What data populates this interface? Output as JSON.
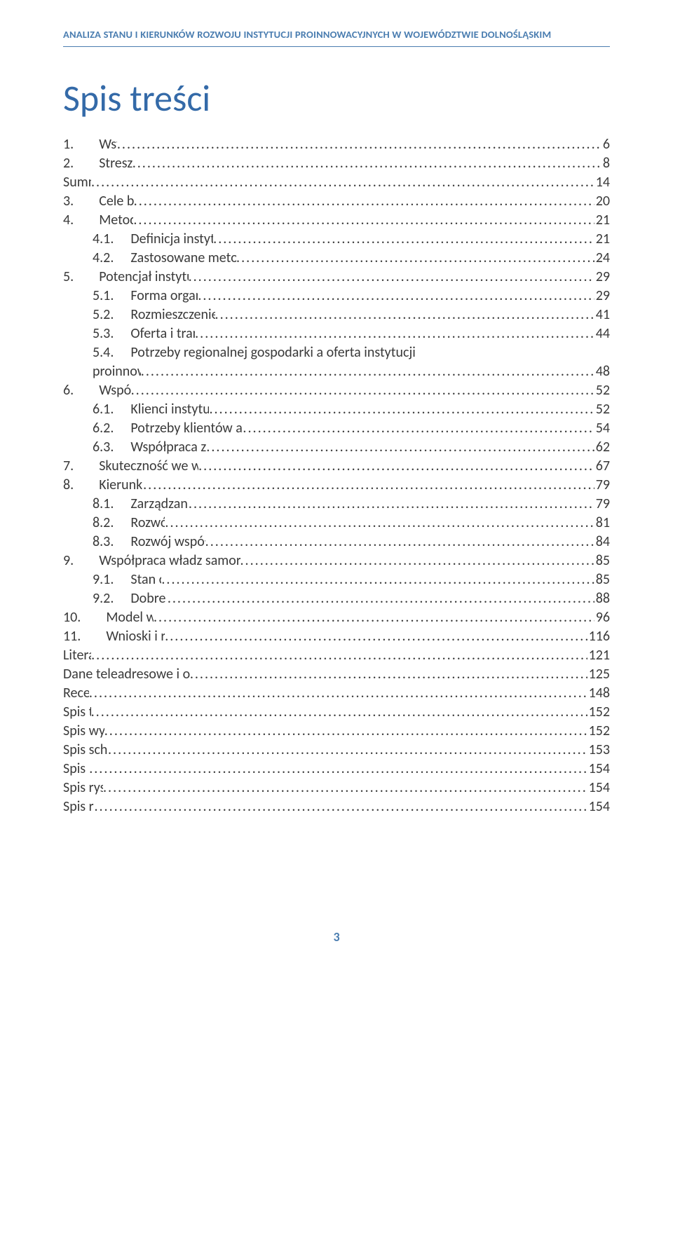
{
  "header": "ANALIZA STANU I KIERUNKÓW ROZWOJU INSTYTUCJI PROINNOWACYJNYCH W WOJEWÓDZTWIE DOLNOŚLĄSKIM",
  "title": "Spis treści",
  "pageNumber": "3",
  "toc": [
    {
      "level": 0,
      "num": "1.",
      "label": "Wstęp",
      "page": "6"
    },
    {
      "level": 0,
      "num": "2.",
      "label": "Streszczenie",
      "page": "8"
    },
    {
      "level": 0,
      "num": "",
      "label": "Summary",
      "page": "14"
    },
    {
      "level": 0,
      "num": "3.",
      "label": "Cele badania",
      "page": "20"
    },
    {
      "level": 0,
      "num": "4.",
      "label": "Metodologia",
      "page": "21"
    },
    {
      "level": 1,
      "num": "4.1.",
      "label": "Definicja instytucji proinnowacyjnych",
      "page": "21"
    },
    {
      "level": 1,
      "num": "4.2.",
      "label": "Zastosowane metody badawcze i przebieg badania",
      "page": "24"
    },
    {
      "level": 0,
      "num": "5.",
      "label": "Potencjał instytucji proinnowacyjnych",
      "page": "29"
    },
    {
      "level": 1,
      "num": "5.1.",
      "label": "Forma organizacyjna i zasoby",
      "page": "29"
    },
    {
      "level": 1,
      "num": "5.2.",
      "label": "Rozmieszczenie i zasięg oddziaływania",
      "page": "41"
    },
    {
      "level": 1,
      "num": "5.3.",
      "label": "Oferta i transfer technologii",
      "page": "44"
    },
    {
      "level": 1,
      "num": "5.4.",
      "label": "Potrzeby regionalnej gospodarki a oferta instytucji",
      "page": null,
      "cont": "proinnowacyjnych",
      "contPage": "48"
    },
    {
      "level": 0,
      "num": "6.",
      "label": "Współpraca",
      "page": "52"
    },
    {
      "level": 1,
      "num": "6.1.",
      "label": "Klienci instytucji proinnowacyjnych",
      "page": "52"
    },
    {
      "level": 1,
      "num": "6.2.",
      "label": "Potrzeby klientów a oferta instytucji  proinnowacyjnych",
      "page": "54"
    },
    {
      "level": 1,
      "num": "6.3.",
      "label": "Współpraca z innymi instytucjami",
      "page": "62"
    },
    {
      "level": 0,
      "num": "7.",
      "label": "Skuteczność we wspieraniu innowacyjności",
      "page": "67"
    },
    {
      "level": 0,
      "num": "8.",
      "label": "Kierunki rozwoju",
      "page": "79"
    },
    {
      "level": 1,
      "num": "8.1.",
      "label": "Zarządzanie strategiczne",
      "page": "79"
    },
    {
      "level": 1,
      "num": "8.2.",
      "label": "Rozwój oferty",
      "page": "81"
    },
    {
      "level": 1,
      "num": "8.3.",
      "label": "Rozwój współpracy z otoczeniem",
      "page": "84"
    },
    {
      "level": 0,
      "num": "9.",
      "label": "Współpraca władz samorządowych  z instytucjami proinnowacyjnymi",
      "page": "85"
    },
    {
      "level": 1,
      "num": "9.1.",
      "label": "Stan obecny",
      "page": "85"
    },
    {
      "level": 1,
      "num": "9.2.",
      "label": "Dobre praktyki",
      "page": "88"
    },
    {
      "level": 0,
      "num": "10.",
      "label": "Model współpracy",
      "page": "96"
    },
    {
      "level": 0,
      "num": "11.",
      "label": "Wnioski i rekomendacje",
      "page": "116"
    },
    {
      "level": 0,
      "num": "",
      "label": "Literatura",
      "page": "121"
    },
    {
      "level": 0,
      "num": "",
      "label": "Dane teleadresowe i opisy instytucji proinnowacyjnych",
      "page": "125"
    },
    {
      "level": 0,
      "num": "",
      "label": "Recenzje",
      "page": "148"
    },
    {
      "level": 0,
      "num": "",
      "label": "Spis tabel",
      "page": "152"
    },
    {
      "level": 0,
      "num": "",
      "label": "Spis wykresów",
      "page": "152"
    },
    {
      "level": 0,
      "num": "",
      "label": "Spis schematów",
      "page": "153"
    },
    {
      "level": 0,
      "num": "",
      "label": "Spis map",
      "page": "154"
    },
    {
      "level": 0,
      "num": "",
      "label": "Spis rysunków",
      "page": "154"
    },
    {
      "level": 0,
      "num": "",
      "label": "Spis ramek",
      "page": "154"
    }
  ]
}
